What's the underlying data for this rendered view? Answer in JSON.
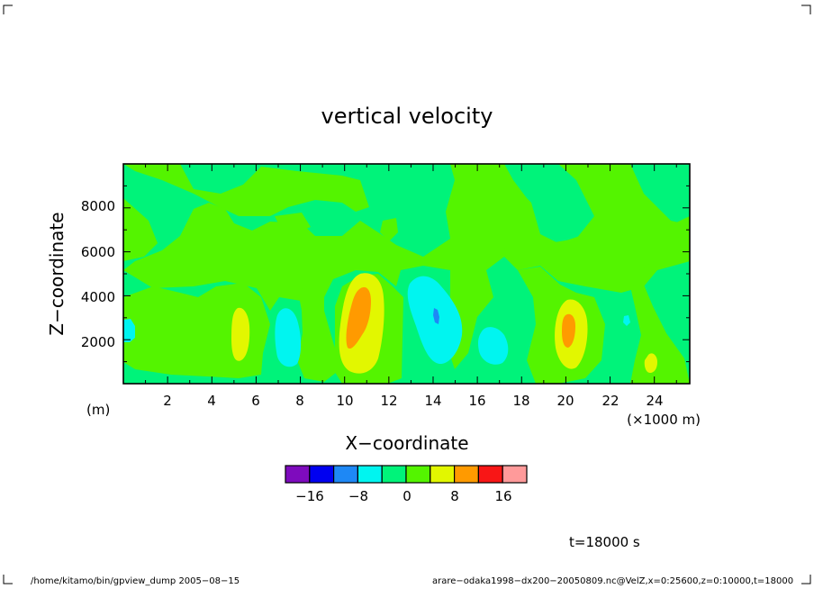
{
  "chart_data": {
    "type": "heatmap",
    "title": "vertical velocity",
    "xlabel": "X−coordinate",
    "ylabel": "Z−coordinate",
    "x_unit": "(×1000 m)",
    "y_unit": "(m)",
    "xlim": [
      0,
      25.6
    ],
    "ylim": [
      0,
      10000
    ],
    "x_ticks": [
      "2",
      "4",
      "6",
      "8",
      "10",
      "12",
      "14",
      "16",
      "18",
      "20",
      "22",
      "24"
    ],
    "y_ticks": [
      "2000",
      "4000",
      "6000",
      "8000"
    ],
    "colorbar": {
      "levels": [
        -20,
        -16,
        -12,
        -8,
        -4,
        0,
        4,
        8,
        12,
        16,
        20
      ],
      "colors": [
        "#7e0bbd",
        "#0000f0",
        "#1e88f5",
        "#00f5f0",
        "#00f37a",
        "#54f400",
        "#e2f700",
        "#ff9a00",
        "#f81616",
        "#ff9a9a"
      ],
      "tick_labels": [
        "−16",
        "−8",
        "0",
        "8",
        "16"
      ]
    },
    "background_level": "0 to 4",
    "features": [
      {
        "label": "updraft",
        "x": 10.7,
        "z": 3200,
        "max_bin": "8 to 12"
      },
      {
        "label": "updraft",
        "x": 20.1,
        "z": 2600,
        "max_bin": "8 to 12"
      },
      {
        "label": "updraft",
        "x": 5.3,
        "z": 2300,
        "max_bin": "4 to 8"
      },
      {
        "label": "updraft",
        "x": 23.8,
        "z": 900,
        "max_bin": "4 to 8"
      },
      {
        "label": "downdraft",
        "x": 14.0,
        "z": 3300,
        "min_bin": "-12 to -8"
      },
      {
        "label": "downdraft",
        "x": 7.5,
        "z": 2100,
        "min_bin": "-8 to -4"
      },
      {
        "label": "downdraft",
        "x": 16.5,
        "z": 1800,
        "min_bin": "-8 to -4"
      },
      {
        "label": "downdraft",
        "x": 0.3,
        "z": 2400,
        "min_bin": "-8 to -4"
      }
    ]
  },
  "time_label": "t=18000 s",
  "footer_left": "/home/kitamo/bin/gpview_dump  2005−08−15",
  "footer_right": "arare−odaka1998−dx200−20050809.nc@VelZ,x=0:25600,z=0:10000,t=18000"
}
